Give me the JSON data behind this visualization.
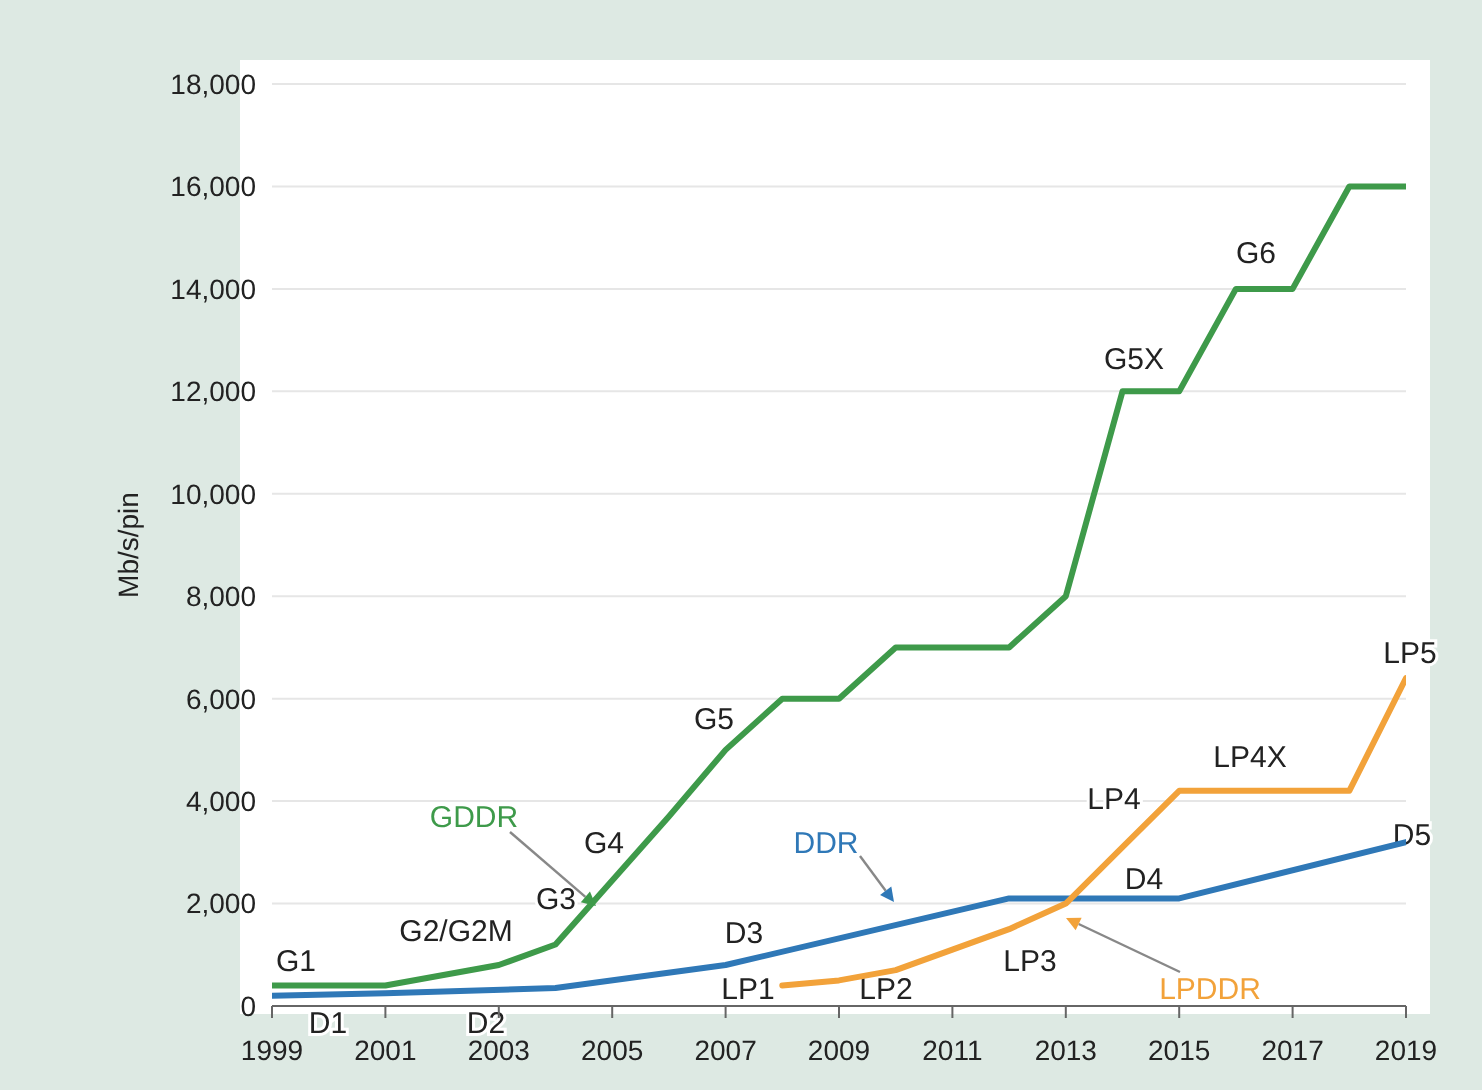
{
  "chart_data": {
    "type": "line",
    "ylabel": "Mb/s/pin",
    "xlim": [
      1999,
      2019
    ],
    "xticks": [
      1999,
      2001,
      2003,
      2005,
      2007,
      2009,
      2011,
      2013,
      2015,
      2017,
      2019
    ],
    "ylim": [
      0,
      18000
    ],
    "yticks": [
      0,
      {
        "value": 2000,
        "label": "2,000"
      },
      {
        "value": 4000,
        "label": "4,000"
      },
      {
        "value": 6000,
        "label": "6,000"
      },
      {
        "value": 8000,
        "label": "8,000"
      },
      {
        "value": 10000,
        "label": "10,000"
      },
      {
        "value": 12000,
        "label": "12,000"
      },
      {
        "value": 14000,
        "label": "14,000"
      },
      {
        "value": 16000,
        "label": "16,000"
      },
      {
        "value": 18000,
        "label": "18,000"
      }
    ],
    "grid": "y",
    "legend": false,
    "marker": "none",
    "line_style": "solid",
    "series": [
      {
        "name": "GDDR",
        "color": "#3e9a4a",
        "x": [
          1999,
          2001,
          2003,
          2004,
          2006,
          2007,
          2008,
          2009,
          2010,
          2012,
          2013,
          2014,
          2015,
          2016,
          2017,
          2018,
          2019
        ],
        "values": [
          400,
          400,
          800,
          1200,
          3700,
          5000,
          6000,
          6000,
          7000,
          7000,
          8000,
          12000,
          12000,
          14000,
          14000,
          16000,
          16000
        ]
      },
      {
        "name": "DDR",
        "color": "#2f78b7",
        "x": [
          1999,
          2001,
          2004,
          2007,
          2012,
          2015,
          2019
        ],
        "values": [
          200,
          250,
          350,
          800,
          2100,
          2100,
          3200
        ]
      },
      {
        "name": "LPDDR",
        "color": "#f2a23a",
        "x": [
          2008,
          2009,
          2010,
          2011,
          2012,
          2013,
          2014,
          2015,
          2018,
          2019
        ],
        "values": [
          400,
          500,
          700,
          1100,
          1500,
          2000,
          3100,
          4200,
          4200,
          6400
        ]
      }
    ],
    "annotations": [
      "G1",
      "D1",
      "G2/G2M",
      "D2",
      "G3",
      "G4",
      "G5",
      "D3",
      "LP1",
      "LP2",
      "LP3",
      "LP4",
      "D4",
      "LP4X",
      "D5",
      "LP5",
      "G5X",
      "G6"
    ]
  }
}
